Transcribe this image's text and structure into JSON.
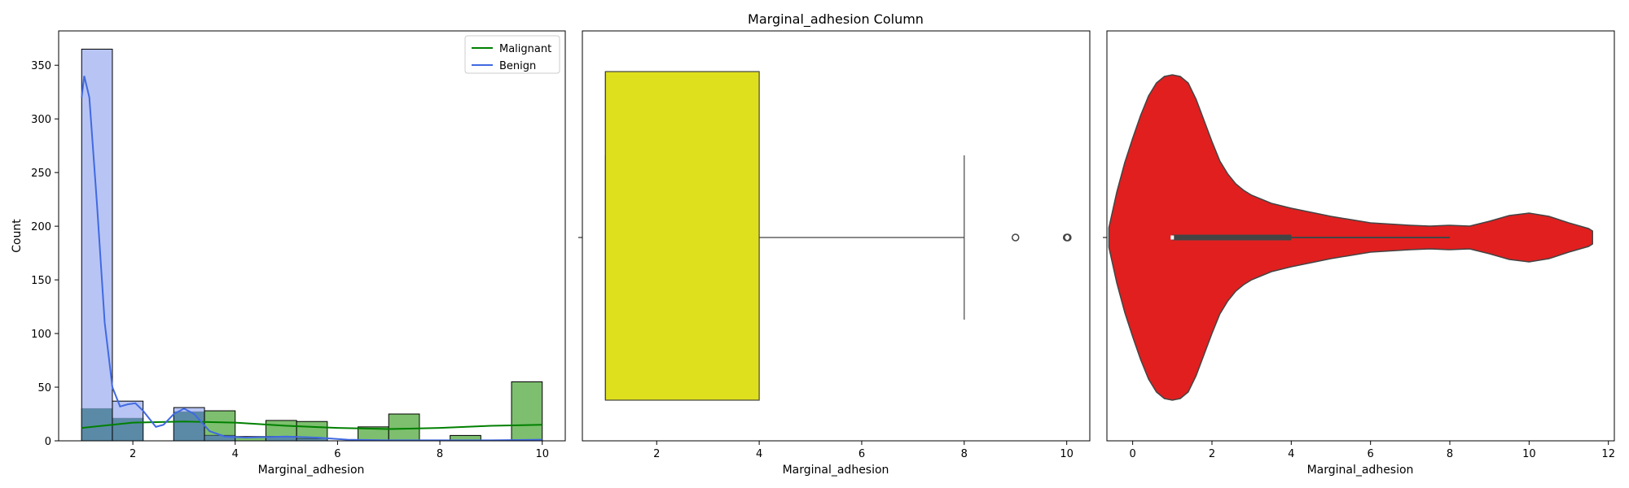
{
  "figure": {
    "title": "Marginal_adhesion Column"
  },
  "colors": {
    "malignant_fill": "#7dbf6e",
    "malignant_line": "#008000",
    "benign_fill": "#a0b1f0",
    "benign_line": "#4169e1",
    "overlap_fill": "#5b8aa6",
    "box_fill": "#dfe01d",
    "violin_fill": "#e11f1f",
    "stroke": "#444444"
  },
  "chart_data": [
    {
      "type": "histogram",
      "xlabel": "Marginal_adhesion",
      "ylabel": "Count",
      "xlim": [
        0.55,
        10.45
      ],
      "ylim": [
        0,
        382
      ],
      "xticks": [
        2,
        4,
        6,
        8,
        10
      ],
      "yticks": [
        0,
        50,
        100,
        150,
        200,
        250,
        300,
        350
      ],
      "legend_position": "upper right",
      "bin_edges": [
        1.0,
        1.6,
        2.2,
        2.8,
        3.4,
        4.0,
        4.6,
        5.2,
        5.8,
        6.4,
        7.0,
        7.6,
        8.2,
        8.8,
        9.4,
        10.0
      ],
      "series": [
        {
          "name": "Malignant",
          "counts": [
            30,
            21,
            0,
            27,
            28,
            4,
            19,
            18,
            0,
            13,
            25,
            0,
            5,
            0,
            55
          ],
          "kde": [
            [
              1.0,
              12
            ],
            [
              2.0,
              17
            ],
            [
              3.0,
              18
            ],
            [
              4.0,
              17
            ],
            [
              5.0,
              14
            ],
            [
              6.0,
              12
            ],
            [
              7.0,
              11
            ],
            [
              8.0,
              12
            ],
            [
              9.0,
              14
            ],
            [
              10.0,
              15
            ]
          ]
        },
        {
          "name": "Benign",
          "counts": [
            365,
            37,
            0,
            31,
            5,
            0,
            4,
            2,
            0,
            0,
            0,
            0,
            0,
            0,
            1
          ],
          "kde": [
            [
              1.0,
              320
            ],
            [
              1.05,
              340
            ],
            [
              1.15,
              320
            ],
            [
              1.3,
              220
            ],
            [
              1.45,
              110
            ],
            [
              1.6,
              50
            ],
            [
              1.75,
              32
            ],
            [
              1.9,
              34
            ],
            [
              2.05,
              35
            ],
            [
              2.2,
              28
            ],
            [
              2.45,
              13
            ],
            [
              2.6,
              15
            ],
            [
              2.8,
              25
            ],
            [
              3.0,
              30
            ],
            [
              3.2,
              25
            ],
            [
              3.5,
              9
            ],
            [
              3.8,
              4
            ],
            [
              4.2,
              3
            ],
            [
              5.0,
              4
            ],
            [
              5.6,
              3
            ],
            [
              6.2,
              1
            ],
            [
              7.0,
              0.5
            ],
            [
              8.0,
              0.5
            ],
            [
              9.0,
              0.5
            ],
            [
              10.0,
              1
            ]
          ]
        }
      ]
    },
    {
      "type": "box",
      "xlabel": "Marginal_adhesion",
      "xlim": [
        0.55,
        10.45
      ],
      "xticks": [
        2,
        4,
        6,
        8,
        10
      ],
      "q1": 1,
      "median": 1,
      "q3": 4,
      "whisker_low": 1,
      "whisker_high": 8,
      "outliers": [
        9,
        10
      ]
    },
    {
      "type": "violin",
      "xlabel": "Marginal_adhesion",
      "xlim": [
        -0.65,
        12.15
      ],
      "xticks": [
        0,
        2,
        4,
        6,
        8,
        10,
        12
      ],
      "range": [
        -0.6,
        11.6
      ],
      "density_profile": [
        [
          -0.6,
          0.06
        ],
        [
          -0.4,
          0.28
        ],
        [
          -0.2,
          0.46
        ],
        [
          0.0,
          0.61
        ],
        [
          0.2,
          0.75
        ],
        [
          0.4,
          0.87
        ],
        [
          0.6,
          0.95
        ],
        [
          0.8,
          0.99
        ],
        [
          1.0,
          1.0
        ],
        [
          1.2,
          0.99
        ],
        [
          1.4,
          0.95
        ],
        [
          1.6,
          0.85
        ],
        [
          1.8,
          0.72
        ],
        [
          2.0,
          0.59
        ],
        [
          2.2,
          0.47
        ],
        [
          2.4,
          0.39
        ],
        [
          2.6,
          0.33
        ],
        [
          2.8,
          0.29
        ],
        [
          3.0,
          0.26
        ],
        [
          3.5,
          0.21
        ],
        [
          4.0,
          0.18
        ],
        [
          5.0,
          0.13
        ],
        [
          6.0,
          0.09
        ],
        [
          7.0,
          0.075
        ],
        [
          7.5,
          0.07
        ],
        [
          8.0,
          0.075
        ],
        [
          8.5,
          0.07
        ],
        [
          9.0,
          0.1
        ],
        [
          9.5,
          0.135
        ],
        [
          10.0,
          0.15
        ],
        [
          10.5,
          0.13
        ],
        [
          11.0,
          0.09
        ],
        [
          11.5,
          0.055
        ],
        [
          11.6,
          0.04
        ]
      ],
      "iqr": [
        1,
        4
      ],
      "whisker": [
        1,
        8
      ],
      "median": 1
    }
  ]
}
